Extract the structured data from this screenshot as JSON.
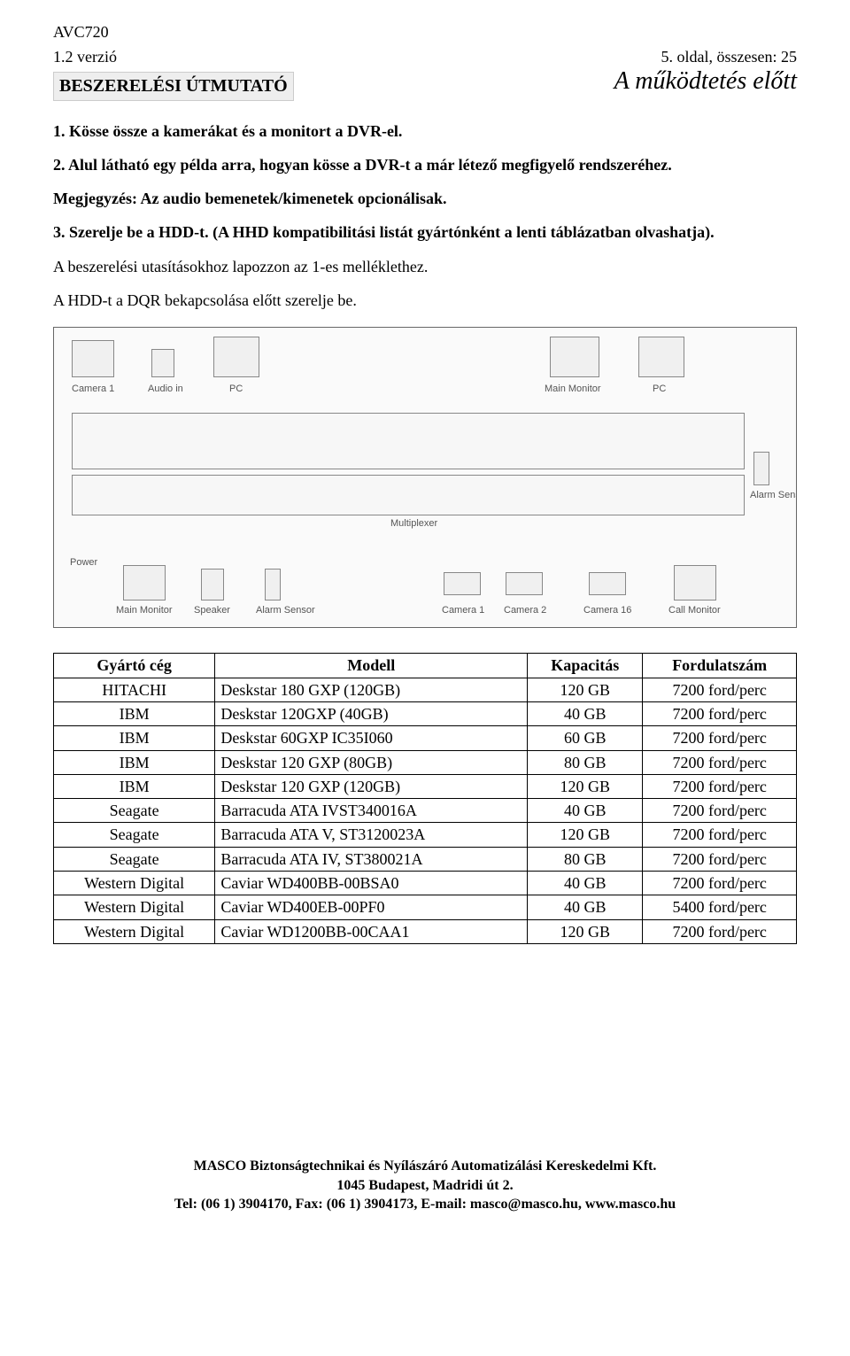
{
  "header": {
    "product": "AVC720",
    "version": "1.2 verzió",
    "page_info": "5. oldal, összesen: 25",
    "section_title": "BESZERELÉSI ÚTMUTATÓ",
    "chapter_title": "A működtetés előtt"
  },
  "paragraphs": {
    "p1": "1. Kösse össze a kamerákat és a monitort a DVR-el.",
    "p2": "2. Alul látható egy példa arra, hogyan kösse a DVR-t a már létező megfigyelő rendszeréhez.",
    "p3": "Megjegyzés: Az audio bemenetek/kimenetek opcionálisak.",
    "p4": "3. Szerelje be a HDD-t. (A HHD kompatibilitási listát gyártónként a lenti táblázatban olvashatja).",
    "p5": "A beszerelési utasításokhoz lapozzon az 1-es melléklethez.",
    "p6": "A HDD-t a DQR bekapcsolása előtt szerelje be."
  },
  "diagram": {
    "labels": {
      "cam1": "Camera 1",
      "audio_in": "Audio in",
      "pc_top": "PC",
      "main_montor": "Main Monitor",
      "pc_r": "PC",
      "multiplexer": "Multiplexer",
      "alarm_sensor_r": "Alarm Sensor",
      "power": "Power",
      "main_monitor_b": "Main Monitor",
      "speaker": "Speaker",
      "alarm_sensor_b": "Alarm Sensor",
      "cam_b1": "Camera 1",
      "cam_b2": "Camera 2",
      "cam_b3": "Camera 16",
      "call_mon": "Call Monitor"
    }
  },
  "hdd_table": {
    "columns": [
      "Gyártó cég",
      "Modell",
      "Kapacitás",
      "Fordulatszám"
    ],
    "rows": [
      [
        "HITACHI",
        "Deskstar 180 GXP (120GB)",
        "120 GB",
        "7200 ford/perc"
      ],
      [
        "IBM",
        "Deskstar 120GXP (40GB)",
        "40 GB",
        "7200 ford/perc"
      ],
      [
        "IBM",
        "Deskstar 60GXP IC35I060",
        "60 GB",
        "7200 ford/perc"
      ],
      [
        "IBM",
        "Deskstar 120 GXP (80GB)",
        "80 GB",
        "7200 ford/perc"
      ],
      [
        "IBM",
        "Deskstar 120 GXP (120GB)",
        "120 GB",
        "7200 ford/perc"
      ],
      [
        "Seagate",
        "Barracuda ATA IVST340016A",
        "40 GB",
        "7200 ford/perc"
      ],
      [
        "Seagate",
        "Barracuda ATA V, ST3120023A",
        "120 GB",
        "7200 ford/perc"
      ],
      [
        "Seagate",
        "Barracuda ATA IV, ST380021A",
        "80 GB",
        "7200 ford/perc"
      ],
      [
        "Western Digital",
        "Caviar WD400BB-00BSA0",
        "40 GB",
        "7200 ford/perc"
      ],
      [
        "Western Digital",
        "Caviar WD400EB-00PF0",
        "40 GB",
        "5400 ford/perc"
      ],
      [
        "Western Digital",
        "Caviar WD1200BB-00CAA1",
        "120 GB",
        "7200 ford/perc"
      ]
    ],
    "col_align": [
      "center",
      "left",
      "center",
      "center"
    ]
  },
  "footer": {
    "l1": "MASCO Biztonságtechnikai és Nyílászáró Automatizálási Kereskedelmi Kft.",
    "l2": "1045 Budapest, Madridi út 2.",
    "l3": "Tel: (06 1) 3904170, Fax: (06 1) 3904173, E-mail: masco@masco.hu, www.masco.hu"
  },
  "colors": {
    "text": "#000000",
    "bg": "#ffffff",
    "section_bg": "#eeeeee",
    "diagram_border": "#666666"
  }
}
